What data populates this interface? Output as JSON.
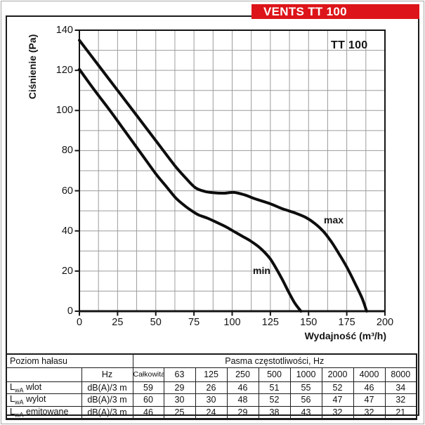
{
  "banner": {
    "label": "VENTS TT 100",
    "bg": "#dd1419",
    "fg": "#ffffff"
  },
  "chart_data": {
    "type": "line",
    "title": "TT 100",
    "xlabel": "Wydajność (m³/h)",
    "ylabel": "Ciśnienie (Pa)",
    "xlim": [
      0,
      200
    ],
    "ylim": [
      0,
      140
    ],
    "x_ticks": [
      0,
      25,
      50,
      75,
      100,
      125,
      150,
      175,
      200
    ],
    "y_ticks": [
      0,
      20,
      40,
      60,
      80,
      100,
      120,
      140
    ],
    "x_minor_step": 12.5,
    "y_minor_step": 10,
    "grid": true,
    "grid_color": "#9c9c9c",
    "curve_color": "#0d0d0d",
    "series": [
      {
        "name": "max",
        "points": [
          [
            0,
            135
          ],
          [
            12.5,
            122.5
          ],
          [
            25,
            110
          ],
          [
            37.5,
            97.5
          ],
          [
            50,
            85
          ],
          [
            62.5,
            72.5
          ],
          [
            70,
            66
          ],
          [
            76,
            61.5
          ],
          [
            82,
            59.7
          ],
          [
            88,
            59
          ],
          [
            95,
            58.8
          ],
          [
            101,
            59.2
          ],
          [
            108,
            58
          ],
          [
            115,
            56
          ],
          [
            125,
            53.5
          ],
          [
            133,
            51
          ],
          [
            141,
            49
          ],
          [
            148,
            46.8
          ],
          [
            154,
            43.8
          ],
          [
            160,
            39.5
          ],
          [
            165,
            34.5
          ],
          [
            170,
            28.5
          ],
          [
            175,
            22
          ],
          [
            180,
            14.5
          ],
          [
            185,
            6.5
          ],
          [
            188,
            0
          ]
        ]
      },
      {
        "name": "min",
        "points": [
          [
            0,
            120.5
          ],
          [
            10,
            110
          ],
          [
            20,
            100
          ],
          [
            30,
            89.5
          ],
          [
            40,
            79
          ],
          [
            50,
            68.5
          ],
          [
            57,
            62
          ],
          [
            63,
            56.5
          ],
          [
            69,
            52.5
          ],
          [
            74,
            49.8
          ],
          [
            78,
            48
          ],
          [
            84,
            46.3
          ],
          [
            90,
            44.2
          ],
          [
            96,
            42
          ],
          [
            101,
            39.8
          ],
          [
            107,
            37.2
          ],
          [
            112,
            35
          ],
          [
            117,
            32.3
          ],
          [
            121,
            29.5
          ],
          [
            125,
            26
          ],
          [
            129,
            21
          ],
          [
            133,
            15.5
          ],
          [
            137,
            9.5
          ],
          [
            141,
            4
          ],
          [
            145,
            0
          ]
        ]
      }
    ]
  },
  "table": {
    "corner_label": "Poziom hałasu",
    "unit_header": "Hz",
    "group_header": "Pasma częstotliwości, Hz",
    "freq_columns": [
      "Całkowita",
      "63",
      "125",
      "250",
      "500",
      "1000",
      "2000",
      "4000",
      "8000"
    ],
    "rows": [
      {
        "name_main": "L",
        "name_sub": "wA",
        "name_rest": " wlot",
        "unit": "dB(A)/3 m",
        "values": [
          59,
          29,
          26,
          46,
          51,
          55,
          52,
          46,
          34
        ]
      },
      {
        "name_main": "L",
        "name_sub": "wA",
        "name_rest": " wylot",
        "unit": "dB(A)/3 m",
        "values": [
          60,
          30,
          30,
          48,
          52,
          56,
          47,
          47,
          32
        ]
      },
      {
        "name_main": "L",
        "name_sub": "wA",
        "name_rest": " emitowane",
        "unit": "dB(A)/3 m",
        "values": [
          46,
          25,
          24,
          29,
          38,
          43,
          32,
          32,
          21
        ]
      }
    ]
  }
}
